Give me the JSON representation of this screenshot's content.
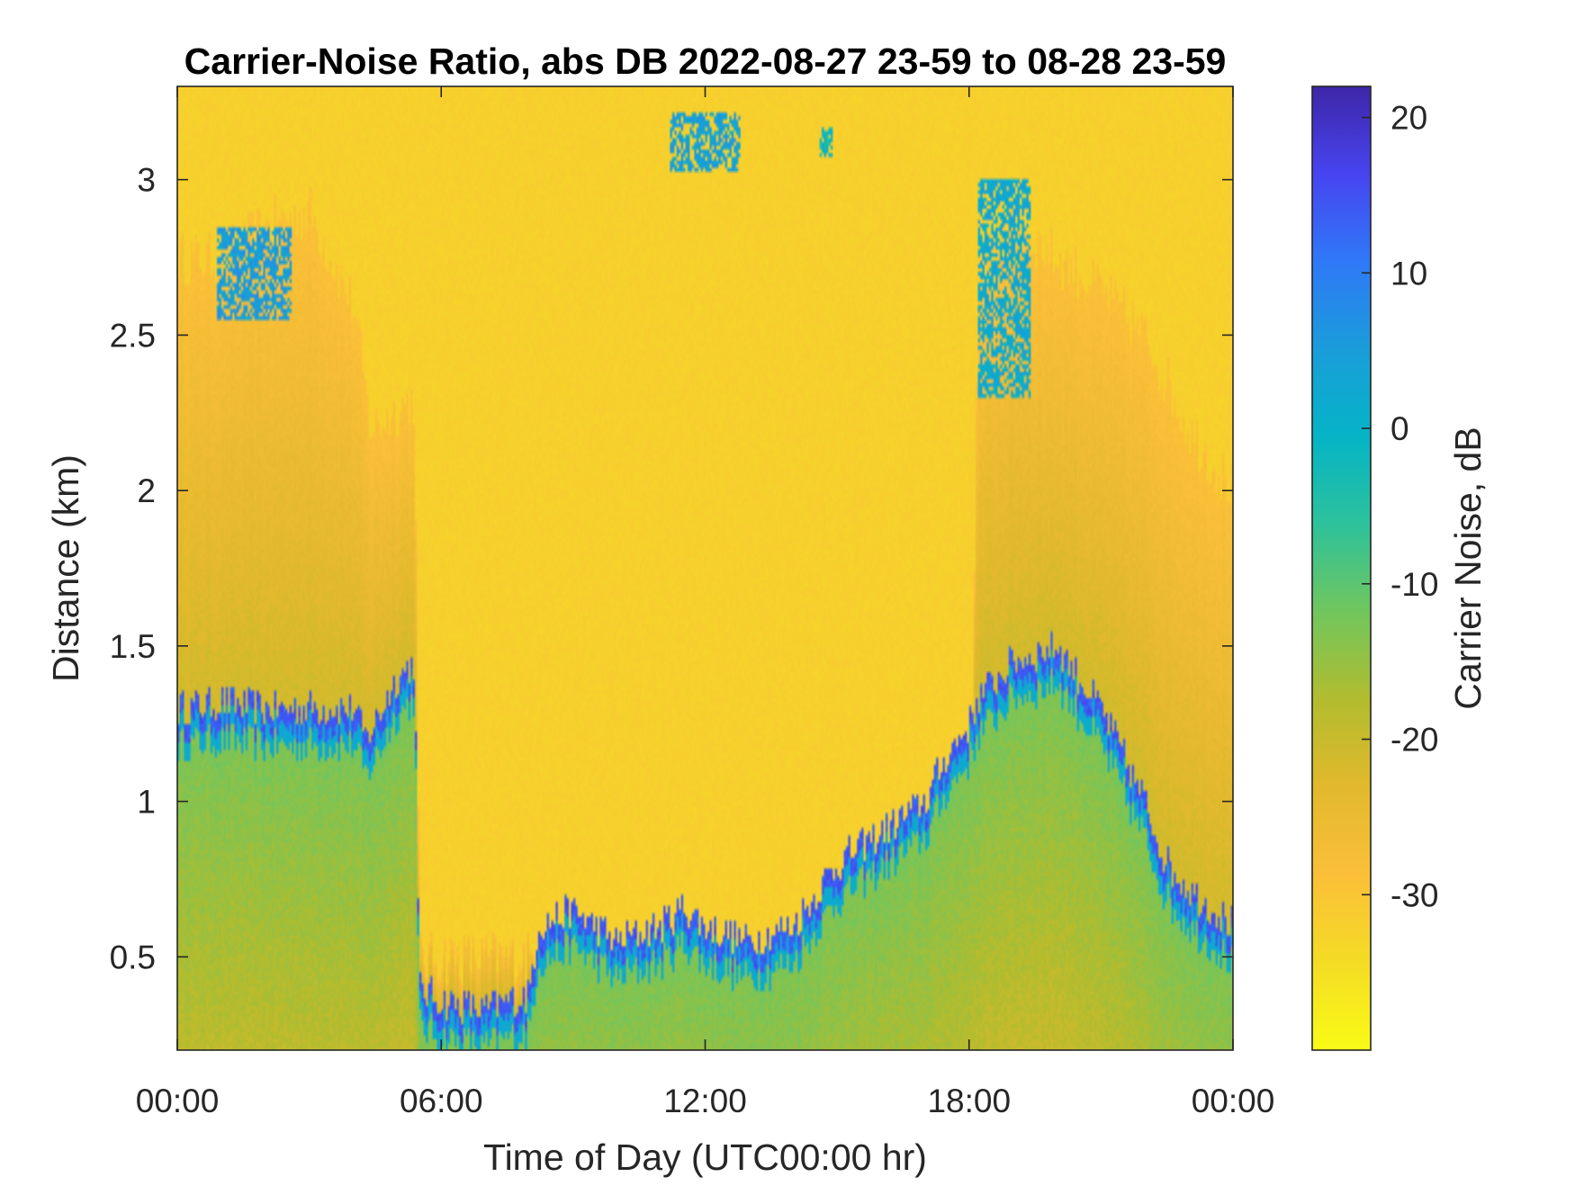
{
  "chart_data": {
    "type": "heatmap",
    "title": "Carrier-Noise Ratio, abs DB 2022-08-27 23-59 to 08-28 23-59",
    "xlabel": "Time of Day (UTC00:00 hr)",
    "ylabel": "Distance (km)",
    "colorbar_label": "Carrier Noise, dB",
    "x_unit": "hours UTC",
    "xlim": [
      0,
      24
    ],
    "ylim": [
      0.2,
      3.3
    ],
    "clim": [
      -40,
      22
    ],
    "x_ticks": [
      0,
      6,
      12,
      18,
      24
    ],
    "x_tick_labels": [
      "00:00",
      "06:00",
      "12:00",
      "18:00",
      "00:00"
    ],
    "y_ticks": [
      0.5,
      1,
      1.5,
      2,
      2.5,
      3
    ],
    "y_tick_labels": [
      "0.5",
      "1",
      "1.5",
      "2",
      "2.5",
      "3"
    ],
    "colorbar_ticks": [
      20,
      10,
      0,
      -10,
      -20,
      -30
    ],
    "colorbar_tick_labels": [
      "20",
      "10",
      "0",
      "-10",
      "-20",
      "-30"
    ],
    "colormap": [
      "#3e26a8",
      "#4744f0",
      "#2f79f7",
      "#1a9dda",
      "#05b4c6",
      "#2dc29b",
      "#71c65d",
      "#b2bc2e",
      "#e2b92c",
      "#fbbf39",
      "#f4dc25",
      "#f9fb15"
    ],
    "background_level_db": -32,
    "boundary_layer_top_km": [
      [
        0,
        1.3
      ],
      [
        1,
        1.32
      ],
      [
        2,
        1.3
      ],
      [
        3,
        1.3
      ],
      [
        4,
        1.3
      ],
      [
        4.3,
        1.2
      ],
      [
        5,
        1.4
      ],
      [
        5.4,
        1.45
      ],
      [
        5.5,
        0.4
      ],
      [
        6,
        0.36
      ],
      [
        7,
        0.33
      ],
      [
        8,
        0.38
      ],
      [
        8.2,
        0.6
      ],
      [
        9,
        0.65
      ],
      [
        10,
        0.55
      ],
      [
        11,
        0.6
      ],
      [
        11.5,
        0.66
      ],
      [
        12,
        0.6
      ],
      [
        13,
        0.55
      ],
      [
        14,
        0.6
      ],
      [
        14.5,
        0.7
      ],
      [
        15,
        0.8
      ],
      [
        16,
        0.9
      ],
      [
        17,
        1.0
      ],
      [
        17.5,
        1.15
      ],
      [
        18,
        1.25
      ],
      [
        18.2,
        1.33
      ],
      [
        19,
        1.45
      ],
      [
        20,
        1.5
      ],
      [
        21,
        1.3
      ],
      [
        22,
        1.0
      ],
      [
        22.5,
        0.8
      ],
      [
        23,
        0.72
      ],
      [
        24,
        0.6
      ]
    ],
    "residual_layer_top_km": [
      [
        0,
        2.75
      ],
      [
        1,
        2.75
      ],
      [
        2,
        2.85
      ],
      [
        3,
        2.9
      ],
      [
        4,
        2.6
      ],
      [
        4.4,
        2.2
      ],
      [
        5.4,
        2.3
      ],
      [
        5.5,
        0.5
      ],
      [
        18,
        0.5
      ],
      [
        18.2,
        2.6
      ],
      [
        19,
        2.85
      ],
      [
        20,
        2.75
      ],
      [
        21,
        2.65
      ],
      [
        22,
        2.5
      ],
      [
        23,
        2.2
      ],
      [
        24,
        2.0
      ]
    ],
    "features": [
      {
        "kind": "cloud",
        "x": [
          0.9,
          2.6
        ],
        "y": [
          2.55,
          2.85
        ],
        "db": 5
      },
      {
        "kind": "cloud",
        "x": [
          11.2,
          12.8
        ],
        "y": [
          3.02,
          3.22
        ],
        "db": 4
      },
      {
        "kind": "cloud",
        "x": [
          14.6,
          14.9
        ],
        "y": [
          3.07,
          3.17
        ],
        "db": -2
      },
      {
        "kind": "cloud",
        "x": [
          18.2,
          19.4
        ],
        "y": [
          2.3,
          3.0
        ],
        "db": 2
      }
    ]
  }
}
